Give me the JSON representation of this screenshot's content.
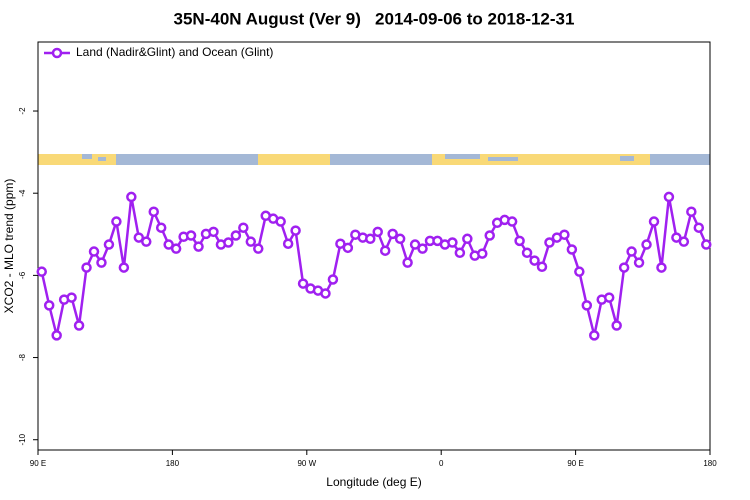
{
  "chart_data": {
    "type": "line",
    "title": "35N-40N August (Ver 9)   2014-09-06 to 2018-12-31",
    "x_label": "Longitude (deg E)",
    "y_label": "XCO2 - MLO trend (ppm)",
    "xlim": [
      90,
      540
    ],
    "xticks": [
      {
        "value": 90,
        "label": "90 E"
      },
      180,
      {
        "value": 270,
        "label": "90 W"
      },
      {
        "value": 360,
        "label": "0"
      },
      {
        "value": 450,
        "label": "90 E"
      },
      {
        "value": 540,
        "label": "180"
      }
    ],
    "ylim": [
      -10.25,
      -0.32
    ],
    "yticks": [
      -2,
      -4,
      -6,
      -8,
      -10
    ],
    "legend": "top-left",
    "x": [
      92.5,
      97.5,
      102.5,
      107.5,
      112.5,
      117.5,
      122.5,
      127.5,
      132.5,
      137.5,
      142.5,
      147.5,
      152.5,
      157.5,
      162.5,
      167.5,
      172.5,
      177.5,
      182.5,
      187.5,
      192.5,
      197.5,
      202.5,
      207.5,
      212.5,
      217.5,
      222.5,
      227.5,
      232.5,
      237.5,
      242.5,
      247.5,
      252.5,
      257.5,
      262.5,
      267.5,
      272.5,
      277.5,
      282.5,
      287.5,
      292.5,
      297.5,
      302.5,
      307.5,
      312.5,
      317.5,
      322.5,
      327.5,
      332.5,
      337.5,
      342.5,
      347.5,
      352.5,
      357.5,
      362.5,
      367.5,
      372.5,
      377.5,
      382.5,
      387.5,
      392.5,
      397.5,
      402.5,
      407.5,
      412.5,
      417.5,
      422.5,
      427.5,
      432.5,
      437.5,
      442.5,
      447.5,
      452.5,
      457.5,
      462.5,
      467.5,
      472.5,
      477.5,
      482.5,
      487.5,
      492.5,
      497.5,
      502.5,
      507.5,
      512.5,
      517.5,
      522.5,
      527.5,
      532.5,
      537.5
    ],
    "series": [
      {
        "name": "Land (Nadir&Glint) and Ocean (Glint)",
        "color": "#a020f0",
        "values": [
          -5.91,
          -6.73,
          -7.46,
          -6.59,
          -6.54,
          -7.22,
          -5.81,
          -5.42,
          -5.69,
          -5.25,
          -4.69,
          -5.81,
          -4.09,
          -5.08,
          -5.18,
          -4.45,
          -4.84,
          -5.25,
          -5.35,
          -5.06,
          -5.03,
          -5.3,
          -4.99,
          -4.94,
          -5.25,
          -5.2,
          -5.03,
          -4.84,
          -5.18,
          -5.35,
          -4.55,
          -4.62,
          -4.69,
          -5.23,
          -4.91,
          -6.2,
          -6.32,
          -6.37,
          -6.44,
          -6.1,
          -5.23,
          -5.33,
          -5.01,
          -5.08,
          -5.11,
          -4.94,
          -5.4,
          -4.99,
          -5.11,
          -5.69,
          -5.25,
          -5.35,
          -5.16,
          -5.16,
          -5.25,
          -5.2,
          -5.45,
          -5.11,
          -5.52,
          -5.47,
          -5.03,
          -4.72,
          -4.65,
          -4.69,
          -5.16,
          -5.45,
          -5.64,
          -5.79,
          -5.2,
          -5.08,
          -5.01,
          -5.37,
          -5.91,
          -6.73,
          -7.46,
          -6.59,
          -6.54,
          -7.22,
          -5.81,
          -5.42,
          -5.69,
          -5.25,
          -4.69,
          -5.81,
          -4.09,
          -5.08,
          -5.18,
          -4.45,
          -4.84,
          -5.25
        ]
      }
    ]
  }
}
